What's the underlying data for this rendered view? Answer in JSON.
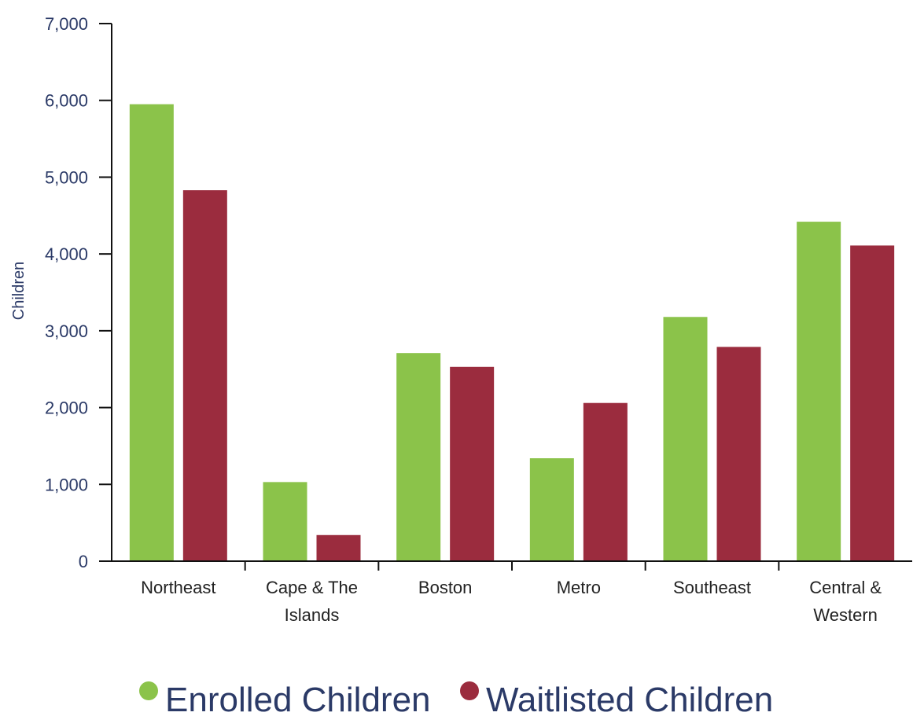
{
  "chart_data": {
    "type": "bar",
    "title": "",
    "xlabel": "",
    "ylabel": "Children",
    "ylim": [
      0,
      7000
    ],
    "yticks": [
      0,
      1000,
      2000,
      3000,
      4000,
      5000,
      6000,
      7000
    ],
    "ytick_labels": [
      "0",
      "1,000",
      "2,000",
      "3,000",
      "4,000",
      "5,000",
      "6,000",
      "7,000"
    ],
    "categories": [
      [
        "Northeast"
      ],
      [
        "Cape & The",
        "Islands"
      ],
      [
        "Boston"
      ],
      [
        "Metro"
      ],
      [
        "Southeast"
      ],
      [
        "Central &",
        "Western"
      ]
    ],
    "series": [
      {
        "name": "Enrolled Children",
        "color": "#8bc34a",
        "values": [
          5950,
          1030,
          2710,
          1340,
          3180,
          4420
        ]
      },
      {
        "name": "Waitlisted Children",
        "color": "#9b2c3e",
        "values": [
          4830,
          340,
          2530,
          2060,
          2790,
          4110
        ]
      }
    ],
    "grid": false,
    "legend_position": "bottom-center"
  }
}
